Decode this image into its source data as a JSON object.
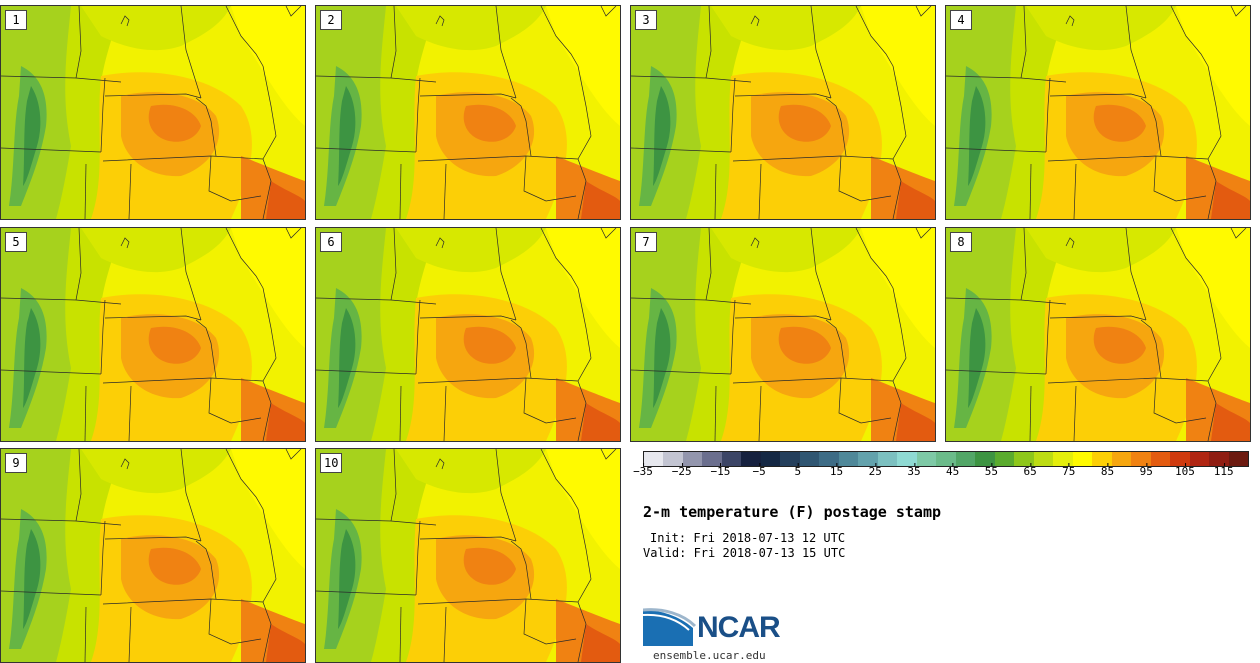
{
  "panels": [
    {
      "label": "1"
    },
    {
      "label": "2"
    },
    {
      "label": "3"
    },
    {
      "label": "4"
    },
    {
      "label": "5"
    },
    {
      "label": "6"
    },
    {
      "label": "7"
    },
    {
      "label": "8"
    },
    {
      "label": "9"
    },
    {
      "label": "10"
    }
  ],
  "colorbar": {
    "colors": [
      "#e7e8ee",
      "#c3c5d2",
      "#9396ad",
      "#6b6f8e",
      "#3c4566",
      "#16213f",
      "#152844",
      "#243f5c",
      "#305672",
      "#3e6c86",
      "#4f8899",
      "#63a2ac",
      "#7cc0c0",
      "#8fdad3",
      "#7ec9a6",
      "#6bbb8a",
      "#52a667",
      "#3d9442",
      "#5aab2e",
      "#8ec71b",
      "#bddc13",
      "#e4ee0c",
      "#fffa00",
      "#fccf06",
      "#f6a60f",
      "#f08212",
      "#e35b10",
      "#cf3a0e",
      "#b02512",
      "#8f1d12",
      "#6c1a10"
    ],
    "ticks": [
      "−35",
      "−25",
      "−15",
      "−5",
      "5",
      "15",
      "25",
      "35",
      "45",
      "55",
      "65",
      "75",
      "85",
      "95",
      "105",
      "115"
    ]
  },
  "title": "2-m temperature (F) postage stamp",
  "init": "Init: Fri 2018-07-13 12 UTC",
  "valid": "Valid: Fri 2018-07-13 15 UTC",
  "logo": {
    "text": "NCAR",
    "site": "ensemble.ucar.edu"
  }
}
